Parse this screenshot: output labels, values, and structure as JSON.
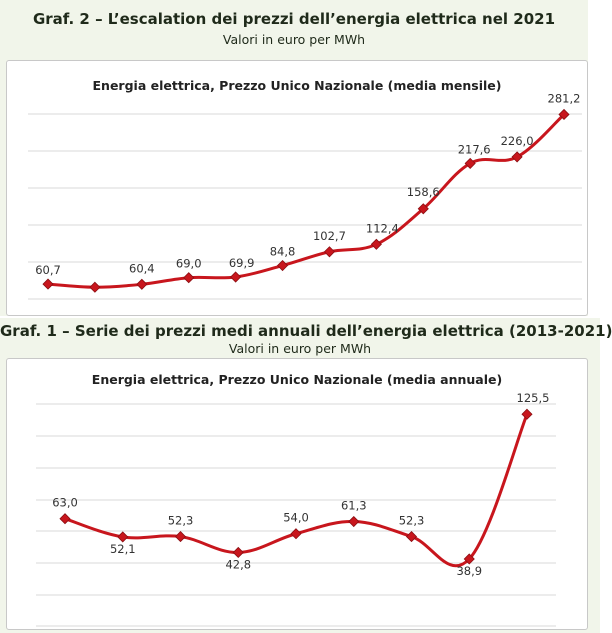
{
  "top": {
    "heading": "Graf. 2 – L’escalation dei prezzi dell’energia elettrica nel 2021",
    "subheading": "Valori in euro per MWh"
  },
  "bottom": {
    "heading": "Graf. 1 – Serie dei prezzi medi annuali dell’energia elettrica (2013-2021)",
    "subheading": "Valori in euro per MWh"
  },
  "colors": {
    "line": "#c8161d",
    "marker": "#c8161d",
    "grid": "#d9d9d9",
    "panel": "#f1f5ea"
  },
  "chart_data": [
    {
      "type": "line",
      "title": "Energia elettrica, Prezzo Unico Nazionale (media mensile)",
      "xlabel": "",
      "ylabel": "",
      "grid": true,
      "ylim": [
        40,
        300
      ],
      "x": [
        1,
        2,
        3,
        4,
        5,
        6,
        7,
        8,
        9,
        10,
        11,
        12
      ],
      "values": [
        60.7,
        56.6,
        60.4,
        69.0,
        69.9,
        84.8,
        102.7,
        112.4,
        158.6,
        217.6,
        226.0,
        281.2
      ],
      "labels": [
        "60,7",
        "",
        "60,4",
        "69,0",
        "69,9",
        "84,8",
        "102,7",
        "112,4",
        "158,6",
        "217,6",
        "226,0",
        "281,2"
      ]
    },
    {
      "type": "line",
      "title": "Energia elettrica, Prezzo Unico Nazionale (media annuale)",
      "xlabel": "",
      "ylabel": "",
      "grid": true,
      "ylim": [
        0,
        140
      ],
      "x": [
        2013,
        2014,
        2015,
        2016,
        2017,
        2018,
        2019,
        2020,
        2021
      ],
      "values": [
        63.0,
        52.1,
        52.3,
        42.8,
        54.0,
        61.3,
        52.3,
        38.9,
        125.5
      ],
      "labels": [
        "63,0",
        "52,1",
        "52,3",
        "42,8",
        "54,0",
        "61,3",
        "52,3",
        "38,9",
        "125,5"
      ]
    }
  ]
}
